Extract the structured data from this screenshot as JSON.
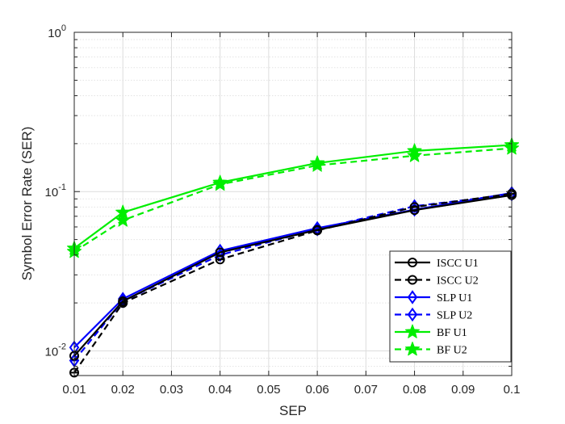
{
  "chart_data": {
    "type": "line",
    "title": "",
    "xlabel": "SEP",
    "ylabel": "Symbol Error Rate (SER)",
    "xlim": [
      0.01,
      0.1
    ],
    "ylim": [
      0.007,
      1
    ],
    "yscale": "log",
    "grid": true,
    "minor_grid": true,
    "legend_position": "bottom-right",
    "x_ticks": [
      0.01,
      0.02,
      0.03,
      0.04,
      0.05,
      0.06,
      0.07,
      0.08,
      0.09,
      0.1
    ],
    "x_tick_labels": [
      "0.01",
      "0.02",
      "0.03",
      "0.04",
      "0.05",
      "0.06",
      "0.07",
      "0.08",
      "0.09",
      "0.1"
    ],
    "y_ticks": [
      {
        "value": 0.01,
        "base": "10",
        "exp": "-2"
      },
      {
        "value": 0.1,
        "base": "10",
        "exp": "-1"
      },
      {
        "value": 1,
        "base": "10",
        "exp": "0"
      }
    ],
    "x": [
      0.01,
      0.02,
      0.04,
      0.06,
      0.08,
      0.1
    ],
    "series": [
      {
        "name": "ISCC U1",
        "color": "#000000",
        "dash": "solid",
        "marker": "circle",
        "values": [
          0.0093,
          0.0205,
          0.0415,
          0.0575,
          0.0765,
          0.095
        ]
      },
      {
        "name": "ISCC U2",
        "color": "#000000",
        "dash": "dashed",
        "marker": "circle-bar",
        "values": [
          0.0073,
          0.02,
          0.0375,
          0.057,
          0.08,
          0.097
        ]
      },
      {
        "name": "SLP U1",
        "color": "#0000ff",
        "dash": "solid",
        "marker": "diamond",
        "values": [
          0.0105,
          0.0212,
          0.0425,
          0.059,
          0.077,
          0.098
        ]
      },
      {
        "name": "SLP U2",
        "color": "#0000ff",
        "dash": "dashed",
        "marker": "diamond-bar",
        "values": [
          0.0087,
          0.0205,
          0.04,
          0.058,
          0.081,
          0.096
        ]
      },
      {
        "name": "BF U1",
        "color": "#00ee00",
        "dash": "solid",
        "marker": "star",
        "values": [
          0.044,
          0.074,
          0.114,
          0.151,
          0.18,
          0.196
        ]
      },
      {
        "name": "BF U2",
        "color": "#00ee00",
        "dash": "dashed",
        "marker": "star",
        "values": [
          0.042,
          0.066,
          0.111,
          0.146,
          0.168,
          0.187
        ]
      }
    ]
  }
}
